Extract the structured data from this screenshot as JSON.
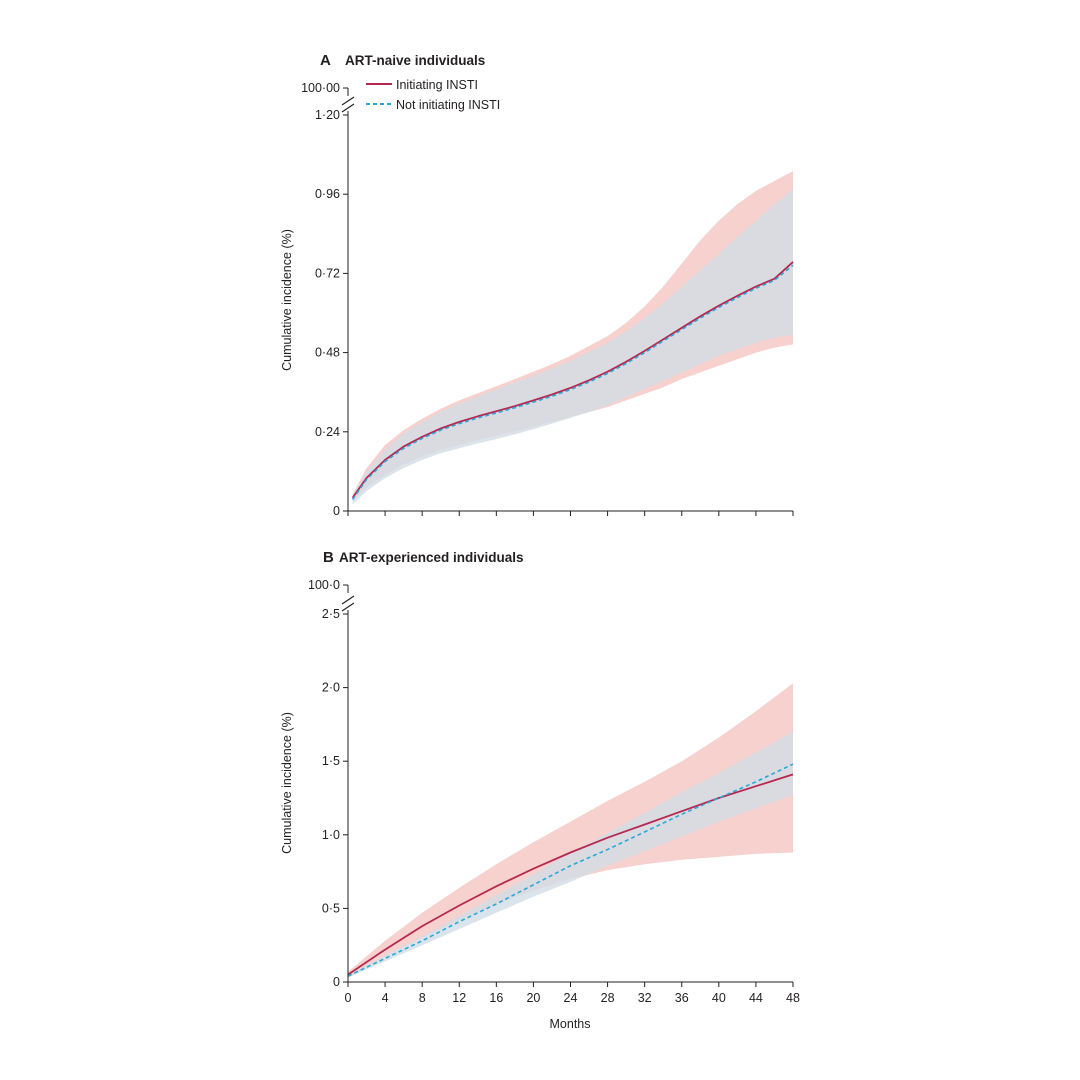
{
  "chart_data": [
    {
      "type": "line",
      "panel_letter": "A",
      "title": "ART-naive individuals",
      "xlabel": "",
      "ylabel": "Cumulative incidence (%)",
      "xlim": [
        0,
        48
      ],
      "ylim": [
        0,
        1.2
      ],
      "x_ticks": [
        0,
        4,
        8,
        12,
        16,
        20,
        24,
        28,
        32,
        36,
        40,
        44,
        48
      ],
      "y_ticks": [
        0,
        0.24,
        0.48,
        0.72,
        0.96,
        1.2
      ],
      "y_tick_labels": [
        "0",
        "0·24",
        "0·48",
        "0·72",
        "0·96",
        "1·20"
      ],
      "y_break_label": "100·00",
      "legend": {
        "position": "top-left"
      },
      "x": [
        0.5,
        2,
        4,
        6,
        8,
        10,
        12,
        14,
        16,
        18,
        20,
        22,
        24,
        26,
        28,
        30,
        32,
        34,
        36,
        38,
        40,
        42,
        44,
        46,
        48
      ],
      "series": [
        {
          "name": "Initiating INSTI",
          "color": "#b5284f",
          "style": "solid",
          "values": [
            0.04,
            0.1,
            0.155,
            0.195,
            0.225,
            0.25,
            0.27,
            0.287,
            0.302,
            0.318,
            0.335,
            0.353,
            0.373,
            0.396,
            0.422,
            0.452,
            0.485,
            0.52,
            0.555,
            0.59,
            0.622,
            0.652,
            0.68,
            0.704,
            0.755
          ],
          "ci_low": [
            0.03,
            0.07,
            0.11,
            0.14,
            0.165,
            0.185,
            0.2,
            0.215,
            0.228,
            0.24,
            0.255,
            0.27,
            0.285,
            0.3,
            0.315,
            0.335,
            0.355,
            0.375,
            0.4,
            0.42,
            0.44,
            0.46,
            0.48,
            0.495,
            0.505
          ],
          "ci_high": [
            0.05,
            0.13,
            0.2,
            0.245,
            0.28,
            0.31,
            0.335,
            0.357,
            0.378,
            0.4,
            0.422,
            0.445,
            0.47,
            0.5,
            0.53,
            0.57,
            0.62,
            0.68,
            0.75,
            0.82,
            0.88,
            0.93,
            0.97,
            1.0,
            1.03
          ],
          "ci_color": "#f4c9c4"
        },
        {
          "name": "Not initiating INSTI",
          "color": "#2aa7d8",
          "style": "dashed",
          "values": [
            0.035,
            0.095,
            0.15,
            0.19,
            0.22,
            0.245,
            0.265,
            0.282,
            0.297,
            0.313,
            0.33,
            0.348,
            0.368,
            0.391,
            0.417,
            0.447,
            0.48,
            0.515,
            0.55,
            0.585,
            0.617,
            0.647,
            0.675,
            0.699,
            0.745
          ],
          "ci_low": [
            0.02,
            0.06,
            0.1,
            0.13,
            0.155,
            0.175,
            0.19,
            0.205,
            0.218,
            0.232,
            0.248,
            0.265,
            0.282,
            0.3,
            0.32,
            0.345,
            0.37,
            0.395,
            0.42,
            0.445,
            0.47,
            0.49,
            0.51,
            0.525,
            0.535
          ],
          "ci_high": [
            0.045,
            0.12,
            0.185,
            0.235,
            0.27,
            0.3,
            0.325,
            0.347,
            0.368,
            0.39,
            0.41,
            0.432,
            0.455,
            0.482,
            0.51,
            0.545,
            0.585,
            0.63,
            0.68,
            0.73,
            0.78,
            0.83,
            0.88,
            0.93,
            0.975
          ],
          "ci_color": "#d3dde6"
        }
      ]
    },
    {
      "type": "line",
      "panel_letter": "B",
      "title": "ART-experienced individuals",
      "xlabel": "Months",
      "ylabel": "Cumulative incidence (%)",
      "xlim": [
        0,
        48
      ],
      "ylim": [
        0,
        2.5
      ],
      "x_ticks": [
        0,
        4,
        8,
        12,
        16,
        20,
        24,
        28,
        32,
        36,
        40,
        44,
        48
      ],
      "x_tick_labels": [
        "0",
        "4",
        "8",
        "12",
        "16",
        "20",
        "24",
        "28",
        "32",
        "36",
        "40",
        "44",
        "48"
      ],
      "y_ticks": [
        0,
        0.5,
        1.0,
        1.5,
        2.0,
        2.5
      ],
      "y_tick_labels": [
        "0",
        "0·5",
        "1·0",
        "1·5",
        "2·0",
        "2·5"
      ],
      "y_break_label": "100·0",
      "x": [
        0,
        4,
        8,
        12,
        16,
        20,
        24,
        28,
        32,
        36,
        40,
        44,
        48
      ],
      "series": [
        {
          "name": "Initiating INSTI",
          "color": "#b5284f",
          "style": "solid",
          "values": [
            0.05,
            0.22,
            0.38,
            0.52,
            0.65,
            0.77,
            0.88,
            0.98,
            1.07,
            1.16,
            1.25,
            1.33,
            1.41
          ],
          "ci_low": [
            0.03,
            0.17,
            0.3,
            0.42,
            0.53,
            0.62,
            0.7,
            0.76,
            0.8,
            0.83,
            0.85,
            0.87,
            0.88
          ],
          "ci_high": [
            0.07,
            0.28,
            0.47,
            0.64,
            0.8,
            0.95,
            1.09,
            1.23,
            1.36,
            1.5,
            1.66,
            1.84,
            2.03
          ],
          "ci_color": "#f4c9c4"
        },
        {
          "name": "Not initiating INSTI",
          "color": "#2aa7d8",
          "style": "dashed",
          "values": [
            0.04,
            0.16,
            0.28,
            0.41,
            0.53,
            0.66,
            0.79,
            0.9,
            1.02,
            1.14,
            1.25,
            1.36,
            1.48
          ],
          "ci_low": [
            0.03,
            0.14,
            0.25,
            0.36,
            0.47,
            0.58,
            0.68,
            0.79,
            0.89,
            0.99,
            1.09,
            1.18,
            1.27
          ],
          "ci_high": [
            0.05,
            0.18,
            0.31,
            0.45,
            0.59,
            0.73,
            0.88,
            1.01,
            1.15,
            1.29,
            1.42,
            1.56,
            1.7
          ],
          "ci_color": "#d3dde6"
        }
      ]
    }
  ]
}
